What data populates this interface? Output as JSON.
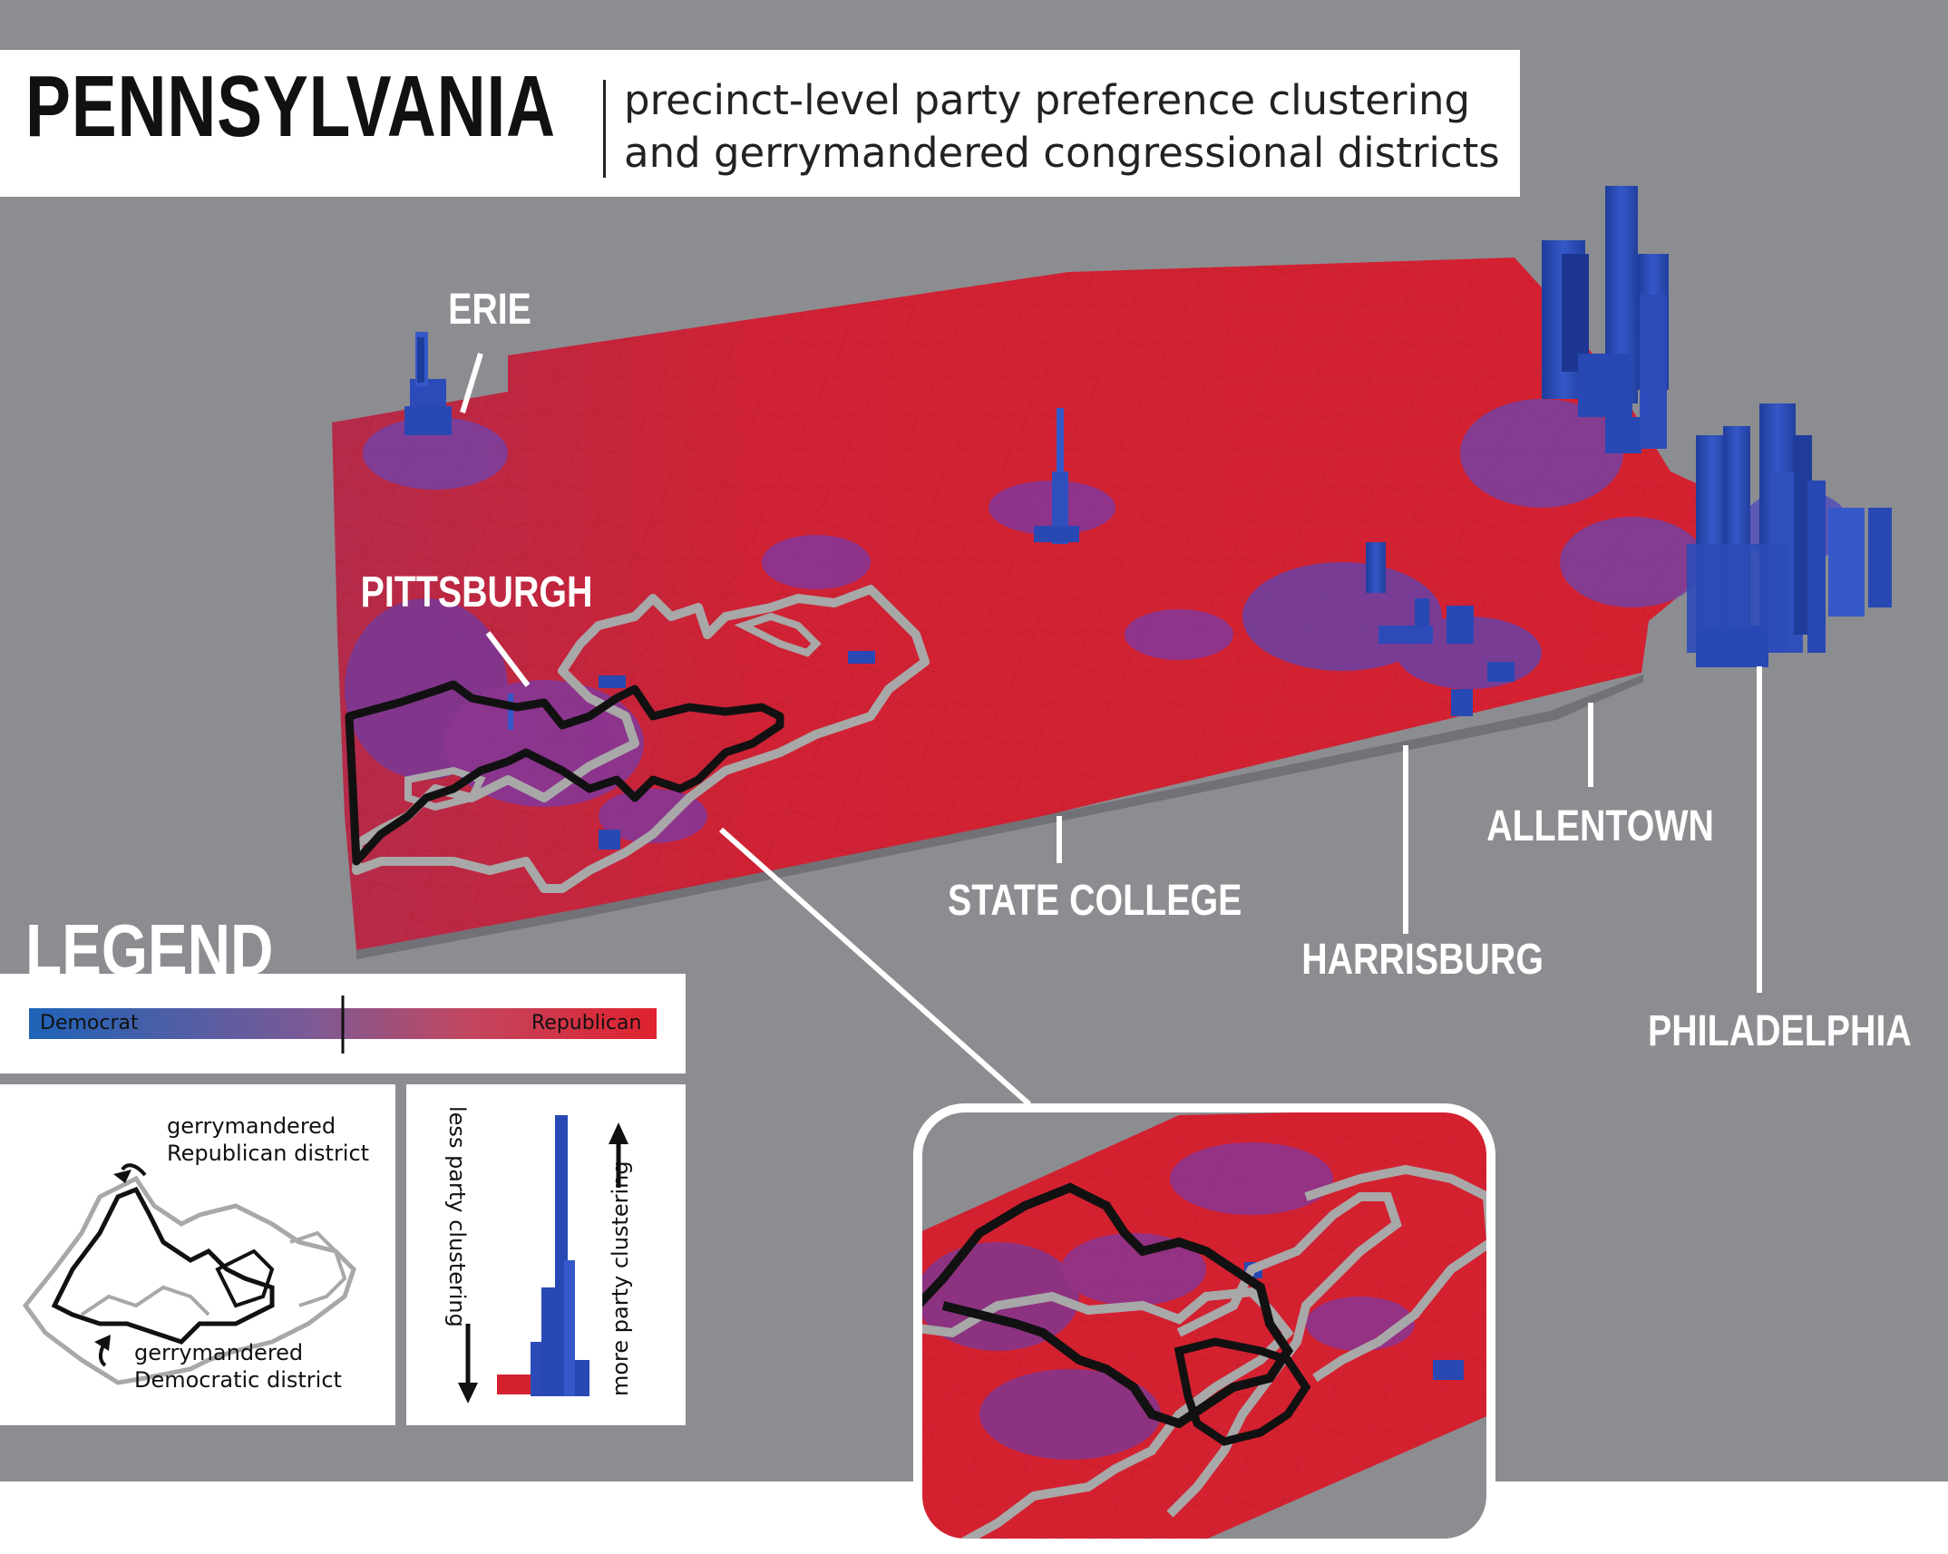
{
  "header": {
    "title": "PENNSYLVANIA",
    "subtitle_line1": "precinct-level party preference clustering",
    "subtitle_line2": "and gerrymandered congressional districts"
  },
  "cities": {
    "erie": "ERIE",
    "pittsburgh": "PITTSBURGH",
    "state_college": "STATE COLLEGE",
    "harrisburg": "HARRISBURG",
    "allentown": "ALLENTOWN",
    "philadelphia": "PHILADELPHIA"
  },
  "legend": {
    "heading": "LEGEND",
    "scale_left": "Democrat",
    "scale_right": "Republican",
    "republican_district_line1": "gerrymandered",
    "republican_district_line2": "Republican district",
    "democratic_district_line1": "gerrymandered",
    "democratic_district_line2": "Democratic district",
    "less_clustering": "less  party clustering",
    "more_clustering": "more party clustering"
  },
  "colors": {
    "background": "#8c8d91",
    "republican": "#d8252e",
    "democrat": "#2848b4",
    "purple": "#7a3aa8",
    "gradient_blue": "#1e63b8",
    "gradient_red": "#e0222f",
    "district_republican": "#111111",
    "district_democratic": "#a8a8a8"
  }
}
